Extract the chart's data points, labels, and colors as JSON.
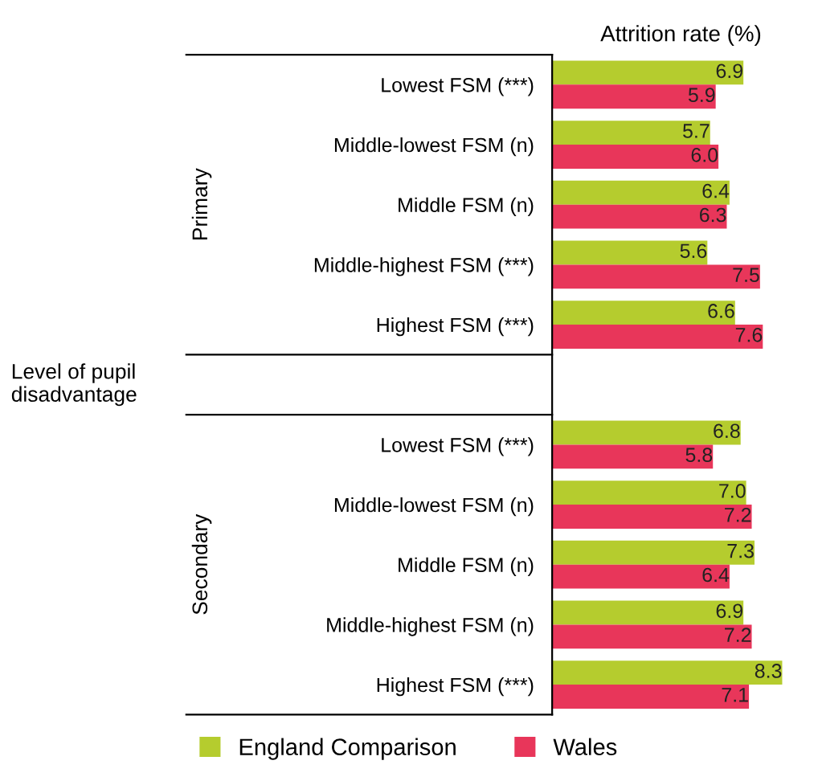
{
  "chart_data": {
    "type": "bar",
    "orientation": "horizontal",
    "title": "Attrition rate (%)",
    "categories": [
      "Lowest FSM (***)",
      "Middle-lowest FSM (n)",
      "Middle FSM (n)",
      "Middle-highest FSM (***)",
      "Highest FSM (***)",
      null,
      "Lowest FSM (***)",
      "Middle-lowest FSM (n)",
      "Middle FSM (n)",
      "Middle-highest FSM (n)",
      "Highest FSM (***)"
    ],
    "series": [
      {
        "name": "England Comparison",
        "color": "#b5cc2e",
        "values": [
          6.9,
          5.7,
          6.4,
          5.6,
          6.6,
          null,
          6.8,
          7.0,
          7.3,
          6.9,
          8.3
        ],
        "value_labels": [
          "6.9",
          "5.7",
          "6.4",
          "5.6",
          "6.6",
          null,
          "6.8",
          "7.0",
          "7.3",
          "6.9",
          "8.3"
        ]
      },
      {
        "name": "Wales",
        "color": "#e8365a",
        "values": [
          5.9,
          6.0,
          6.3,
          7.5,
          7.6,
          null,
          5.8,
          7.2,
          6.4,
          7.2,
          7.1
        ],
        "value_labels": [
          "5.9",
          "6.0",
          "6.3",
          "7.5",
          "7.6",
          null,
          "5.8",
          "7.2",
          "6.4",
          "7.2",
          "7.1"
        ]
      }
    ],
    "annotations": [
      "Primary",
      "Secondary",
      "Level of pupil disadvantage"
    ],
    "legend": "bottom",
    "grid": false,
    "tick_labels": "y"
  }
}
